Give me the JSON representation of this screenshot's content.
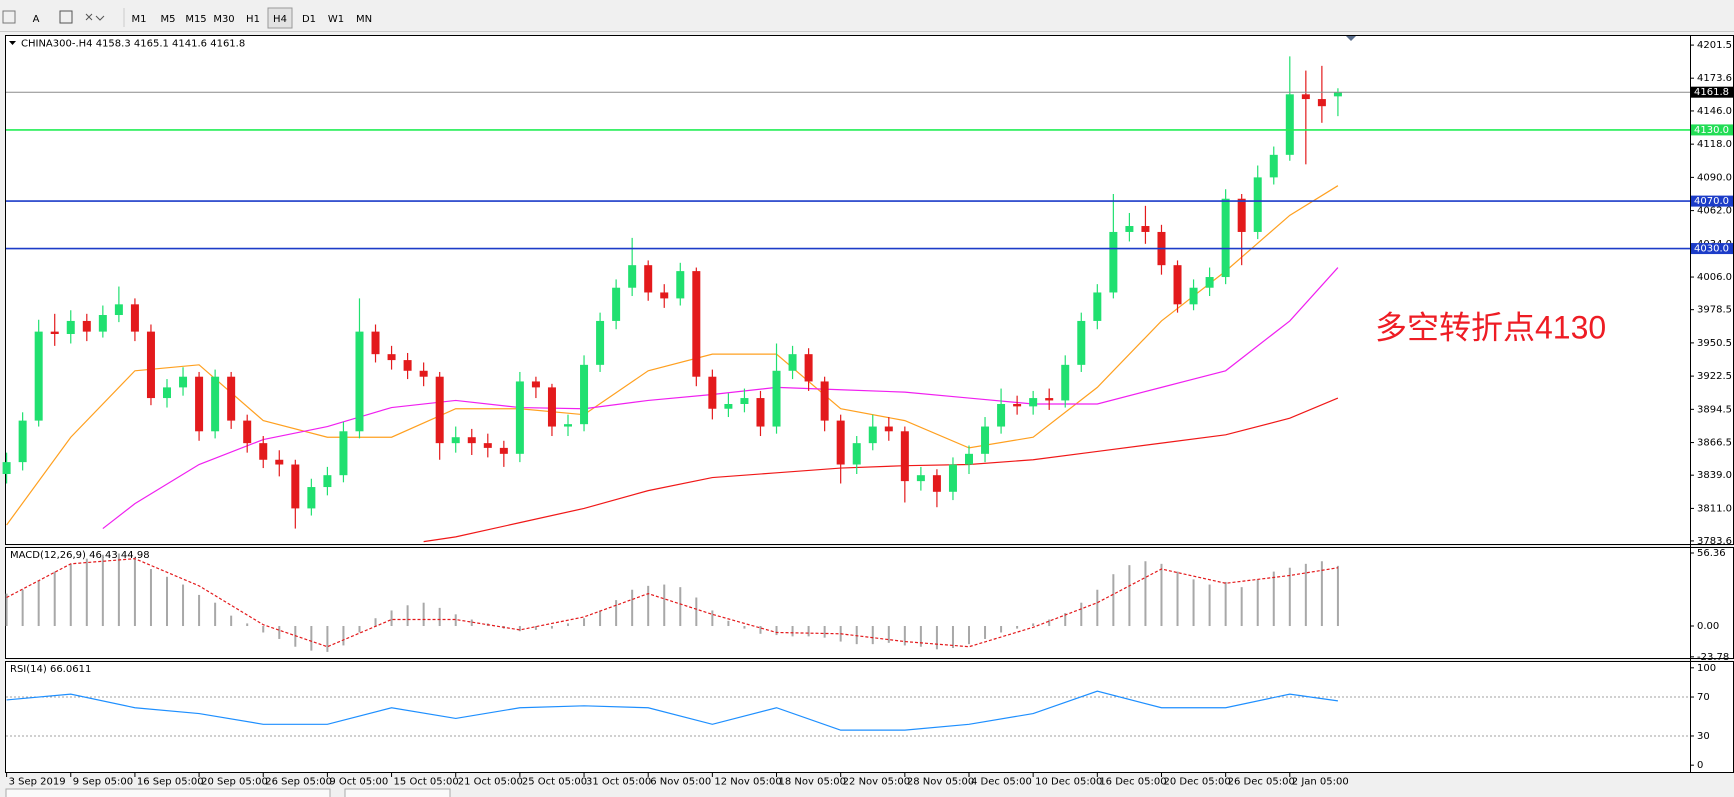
{
  "toolbar": {
    "tools": [
      "A"
    ],
    "timeframes": [
      "M1",
      "M5",
      "M15",
      "M30",
      "H1",
      "H4",
      "D1",
      "W1",
      "MN"
    ],
    "active_timeframe": 5
  },
  "chart_data": [
    {
      "type": "candlestick",
      "title": "CHINA300-.H4  4158.3 4165.1 4141.6 4161.8",
      "x_labels": [
        "3 Sep 2019",
        "9 Sep 05:00",
        "16 Sep 05:00",
        "20 Sep 05:00",
        "26 Sep 05:00",
        "9 Oct 05:00",
        "15 Oct 05:00",
        "21 Oct 05:00",
        "25 Oct 05:00",
        "31 Oct 05:00",
        "6 Nov 05:00",
        "12 Nov 05:00",
        "18 Nov 05:00",
        "22 Nov 05:00",
        "28 Nov 05:00",
        "4 Dec 05:00",
        "10 Dec 05:00",
        "16 Dec 05:00",
        "20 Dec 05:00",
        "26 Dec 05:00",
        "2 Jan 05:00"
      ],
      "open": [
        3840,
        3850,
        3885,
        3960,
        3958,
        3969,
        3960,
        3974,
        3983,
        3960,
        3904,
        3913,
        3922,
        3876,
        3922,
        3885,
        3866,
        3852,
        3848,
        3811,
        3829,
        3839,
        3876,
        3960,
        3941,
        3936,
        3927,
        3922,
        3866,
        3871,
        3866,
        3862,
        3857,
        3918,
        3913,
        3880,
        3882,
        3932,
        3969,
        3997,
        4016,
        3993,
        3988,
        4011,
        3922,
        3895,
        3899,
        3904,
        3880,
        3927,
        3941,
        3918,
        3885,
        3848,
        3866,
        3880,
        3876,
        3834,
        3839,
        3825,
        3848,
        3857,
        3880,
        3899,
        3897,
        3904,
        3902,
        3932,
        3969,
        3993,
        4044,
        4049,
        4044,
        4016,
        3983,
        3997,
        4006,
        4072,
        4044,
        4090,
        4109,
        4160,
        4156,
        4158.3
      ],
      "high": [
        3858,
        3892,
        3970,
        3975,
        3978,
        3975,
        3982,
        3998,
        3988,
        3966,
        3920,
        3930,
        3926,
        3928,
        3926,
        3890,
        3872,
        3860,
        3852,
        3836,
        3846,
        3884,
        3988,
        3966,
        3948,
        3942,
        3934,
        3926,
        3880,
        3878,
        3874,
        3868,
        3926,
        3922,
        3916,
        3890,
        3940,
        3976,
        4004,
        4039,
        4020,
        4000,
        4018,
        4014,
        3928,
        3908,
        3912,
        3910,
        3950,
        3948,
        3946,
        3922,
        3890,
        3872,
        3890,
        3888,
        3880,
        3846,
        3844,
        3854,
        3864,
        3888,
        3912,
        3906,
        3910,
        3912,
        3940,
        3976,
        4000,
        4076,
        4060,
        4066,
        4050,
        4020,
        4004,
        4014,
        4080,
        4076,
        4100,
        4116,
        4192,
        4180,
        4184,
        4165.1
      ],
      "low": [
        3832,
        3843,
        3880,
        3948,
        3950,
        3952,
        3955,
        3968,
        3952,
        3898,
        3896,
        3906,
        3868,
        3870,
        3878,
        3858,
        3845,
        3838,
        3794,
        3805,
        3822,
        3833,
        3870,
        3934,
        3928,
        3920,
        3914,
        3852,
        3858,
        3856,
        3854,
        3846,
        3850,
        3904,
        3872,
        3872,
        3876,
        3926,
        3962,
        3990,
        3986,
        3980,
        3982,
        3914,
        3886,
        3888,
        3892,
        3872,
        3874,
        3920,
        3910,
        3876,
        3832,
        3840,
        3860,
        3868,
        3816,
        3826,
        3812,
        3818,
        3840,
        3850,
        3874,
        3890,
        3890,
        3894,
        3896,
        3926,
        3962,
        3988,
        4036,
        4034,
        4008,
        3976,
        3978,
        3990,
        4000,
        4016,
        4038,
        4084,
        4104,
        4101,
        4136,
        4141.6
      ],
      "close": [
        3850,
        3885,
        3960,
        3958,
        3969,
        3960,
        3974,
        3983,
        3960,
        3904,
        3913,
        3922,
        3876,
        3922,
        3885,
        3866,
        3852,
        3848,
        3811,
        3829,
        3839,
        3876,
        3960,
        3941,
        3936,
        3927,
        3922,
        3866,
        3871,
        3866,
        3862,
        3857,
        3918,
        3913,
        3880,
        3882,
        3932,
        3969,
        3997,
        4016,
        3993,
        3988,
        4011,
        3922,
        3895,
        3899,
        3904,
        3880,
        3927,
        3941,
        3918,
        3885,
        3848,
        3866,
        3880,
        3876,
        3834,
        3839,
        3825,
        3848,
        3857,
        3880,
        3899,
        3897,
        3904,
        3902,
        3932,
        3969,
        3993,
        4044,
        4049,
        4044,
        4016,
        3983,
        3997,
        4006,
        4072,
        4044,
        4090,
        4109,
        4160,
        4156,
        4150,
        4161.8
      ],
      "up_color": "#20e070",
      "down_color": "#e31a1c",
      "ylim": [
        3781,
        4210
      ],
      "yticks": [
        4201.5,
        4173.6,
        {
          "value": 4146,
          "label": "4146.0"
        },
        {
          "value": 4118,
          "label": "4118.0"
        },
        {
          "value": 4090,
          "label": "4090.0"
        },
        {
          "value": 4062,
          "label": "4062.0"
        },
        {
          "value": 4034,
          "label": "4034.0"
        },
        {
          "value": 4006,
          "label": "4006.0"
        },
        3978.5,
        3950.5,
        3922.5,
        3894.5,
        3866.5,
        {
          "value": 3839,
          "label": "3839.0"
        },
        {
          "value": 3811,
          "label": "3811.0"
        },
        3783.6
      ],
      "overlays": [
        {
          "color": "#ffa020",
          "x": [
            0,
            4,
            8,
            12,
            16,
            20,
            24,
            28,
            32,
            36,
            40,
            44,
            48,
            52,
            56,
            60,
            64,
            68,
            72,
            76,
            80,
            83
          ],
          "values": [
            3797,
            3871,
            3927,
            3932,
            3885,
            3871,
            3871,
            3895,
            3895,
            3890,
            3927,
            3941,
            3941,
            3895,
            3885,
            3862,
            3871,
            3913,
            3969,
            4011,
            4058,
            4083
          ]
        },
        {
          "color": "#f020f0",
          "x": [
            6,
            8,
            12,
            16,
            20,
            24,
            28,
            32,
            36,
            40,
            44,
            48,
            52,
            56,
            60,
            64,
            68,
            72,
            76,
            80,
            83
          ],
          "values": [
            3794,
            3815,
            3848,
            3869,
            3880,
            3896,
            3902,
            3896,
            3895,
            3902,
            3907,
            3913,
            3911,
            3909,
            3904,
            3899,
            3899,
            3913,
            3927,
            3969,
            4014
          ]
        },
        {
          "color": "#f01818",
          "x": [
            26,
            28,
            32,
            36,
            40,
            44,
            48,
            52,
            56,
            60,
            64,
            68,
            72,
            76,
            80,
            83
          ],
          "values": [
            3783,
            3787,
            3799,
            3811,
            3826,
            3837,
            3841,
            3845,
            3847,
            3848,
            3852,
            3859,
            3866,
            3873,
            3887,
            3904
          ]
        }
      ],
      "levels": [
        {
          "value": 4161.8,
          "color": "#8c8c8c",
          "tag_color": "#000000"
        },
        {
          "value": 4130,
          "label": "4130.0",
          "color": "#22ee55",
          "tag_color": "#22dd55"
        },
        {
          "value": 4070,
          "label": "4070.0",
          "color": "#1c3cc8",
          "tag_color": "#1c3cc8"
        },
        {
          "value": 4030,
          "label": "4030.0",
          "color": "#1c3cc8",
          "tag_color": "#1c3cc8"
        }
      ],
      "annotation": {
        "text": "多空转折点4130",
        "color": "#ee1c24"
      }
    },
    {
      "type": "macd",
      "title": "MACD(12,26,9) 46.43 44.98",
      "histogram": {
        "color": "#a8a8a8",
        "values": [
          25,
          28,
          35,
          42,
          48,
          52,
          55,
          56,
          52,
          44,
          38,
          32,
          24,
          18,
          8,
          2,
          -5,
          -10,
          -16,
          -19,
          -20,
          -15,
          -5,
          6,
          12,
          16,
          18,
          14,
          9,
          5,
          2,
          -2,
          -4,
          -3,
          -2,
          2,
          6,
          12,
          20,
          28,
          31,
          32,
          30,
          22,
          12,
          4,
          -2,
          -6,
          -7,
          -8,
          -8,
          -9,
          -12,
          -14,
          -14,
          -13,
          -15,
          -16,
          -18,
          -17,
          -14,
          -10,
          -5,
          -2,
          2,
          5,
          10,
          18,
          28,
          40,
          47,
          50,
          48,
          42,
          36,
          32,
          34,
          30,
          36,
          42,
          45,
          48,
          50,
          46.43
        ]
      },
      "signal": {
        "color": "#e31a1c",
        "x": [
          0,
          4,
          8,
          12,
          16,
          20,
          24,
          28,
          32,
          36,
          40,
          44,
          48,
          52,
          56,
          60,
          64,
          68,
          72,
          76,
          80,
          83
        ],
        "values": [
          22,
          48,
          52,
          31,
          1,
          -16,
          5,
          5,
          -3,
          7,
          25,
          9,
          -5,
          -6,
          -12,
          -16,
          -1,
          18,
          44,
          33,
          39,
          44.98
        ]
      },
      "ylim": [
        -24.7,
        61
      ],
      "yticks": [
        56.36,
        {
          "value": 0,
          "label": "0.00"
        },
        -23.78
      ]
    },
    {
      "type": "line",
      "title": "RSI(14) 66.0611",
      "series": [
        {
          "color": "#1e8fff",
          "x": [
            0,
            4,
            8,
            12,
            16,
            20,
            24,
            28,
            32,
            36,
            40,
            44,
            48,
            52,
            56,
            60,
            64,
            68,
            72,
            76,
            80,
            83
          ],
          "values": [
            67,
            73,
            59,
            53,
            42,
            42,
            59,
            48,
            59,
            61,
            59,
            42,
            59,
            36,
            36,
            42,
            53,
            76,
            59,
            59,
            73,
            66.0611
          ]
        }
      ],
      "ylim": [
        -7,
        107
      ],
      "yticks": [
        100,
        70,
        30,
        0
      ],
      "levels": [
        70,
        30
      ]
    }
  ]
}
